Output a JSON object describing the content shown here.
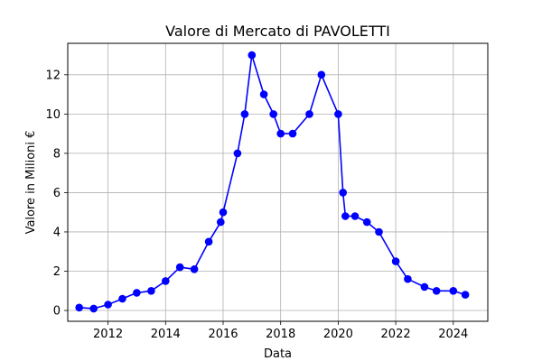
{
  "chart_data": {
    "type": "line",
    "title": "Valore di Mercato di PAVOLETTI",
    "xlabel": "Data",
    "ylabel": "Valore in Milioni €",
    "x_ticks": [
      "2012",
      "2014",
      "2016",
      "2018",
      "2020",
      "2022",
      "2024"
    ],
    "y_ticks": [
      "0",
      "2",
      "4",
      "6",
      "8",
      "10",
      "12"
    ],
    "xlim": [
      2010.6,
      2025.2
    ],
    "ylim": [
      -0.55,
      13.6
    ],
    "grid": true,
    "legend": "none",
    "series": [
      {
        "color": "#0000ff",
        "marker": "circle",
        "points": [
          {
            "x": "2011-01",
            "y": 0.15
          },
          {
            "x": "2011-07",
            "y": 0.1
          },
          {
            "x": "2012-01",
            "y": 0.3
          },
          {
            "x": "2012-07",
            "y": 0.6
          },
          {
            "x": "2013-01",
            "y": 0.9
          },
          {
            "x": "2013-07",
            "y": 1.0
          },
          {
            "x": "2014-01",
            "y": 1.5
          },
          {
            "x": "2014-07",
            "y": 2.2
          },
          {
            "x": "2015-01",
            "y": 2.1
          },
          {
            "x": "2015-07",
            "y": 3.5
          },
          {
            "x": "2015-12",
            "y": 4.5
          },
          {
            "x": "2016-01",
            "y": 5.0
          },
          {
            "x": "2016-07",
            "y": 8.0
          },
          {
            "x": "2016-10",
            "y": 10.0
          },
          {
            "x": "2017-01",
            "y": 13.0
          },
          {
            "x": "2017-06",
            "y": 11.0
          },
          {
            "x": "2017-10",
            "y": 10.0
          },
          {
            "x": "2018-01",
            "y": 9.0
          },
          {
            "x": "2018-06",
            "y": 9.0
          },
          {
            "x": "2019-01",
            "y": 10.0
          },
          {
            "x": "2019-06",
            "y": 12.0
          },
          {
            "x": "2020-01",
            "y": 10.0
          },
          {
            "x": "2020-03",
            "y": 6.0
          },
          {
            "x": "2020-04",
            "y": 4.8
          },
          {
            "x": "2020-08",
            "y": 4.8
          },
          {
            "x": "2021-01",
            "y": 4.5
          },
          {
            "x": "2021-06",
            "y": 4.0
          },
          {
            "x": "2022-01",
            "y": 2.5
          },
          {
            "x": "2022-06",
            "y": 1.6
          },
          {
            "x": "2023-01",
            "y": 1.2
          },
          {
            "x": "2023-06",
            "y": 1.0
          },
          {
            "x": "2024-01",
            "y": 1.0
          },
          {
            "x": "2024-06",
            "y": 0.8
          }
        ]
      }
    ]
  }
}
